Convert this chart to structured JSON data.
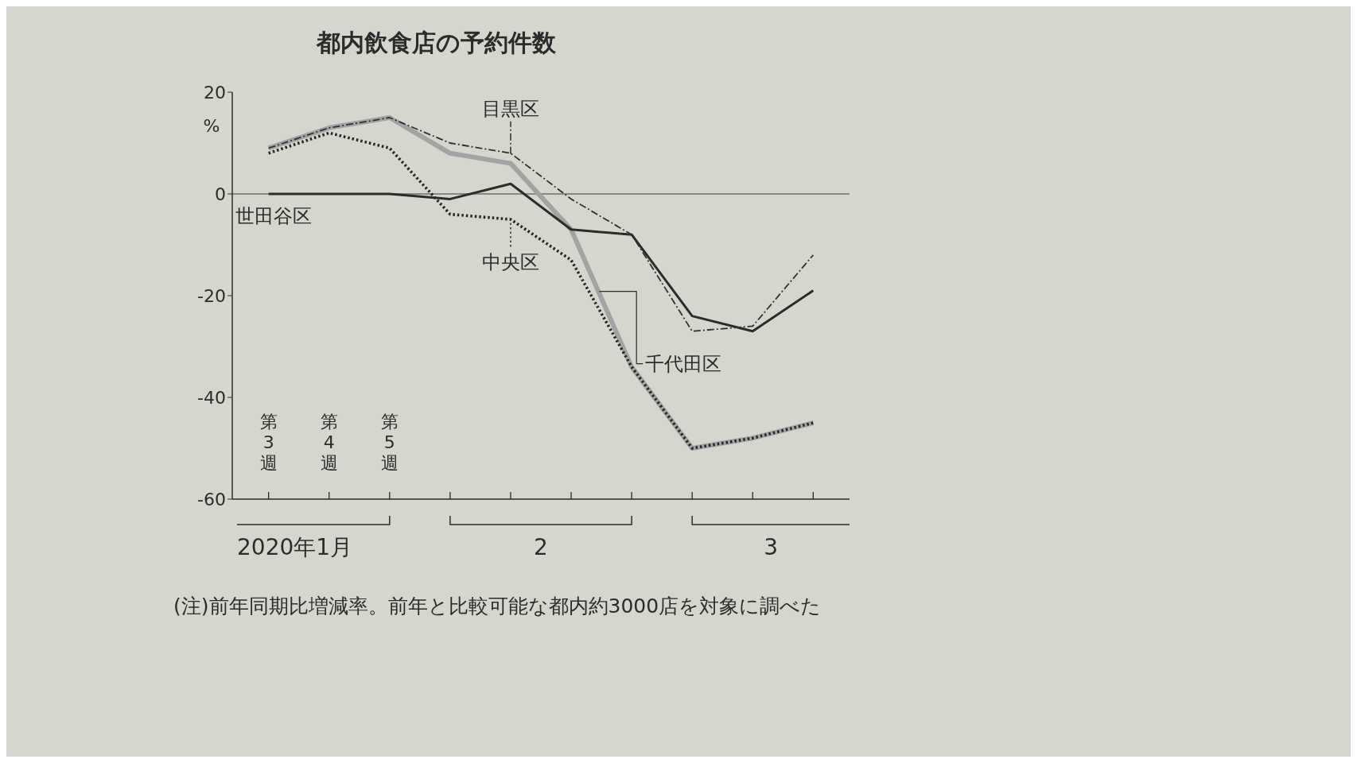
{
  "chart_data": {
    "type": "line",
    "title": "都内飲食店の予約件数",
    "ylabel": "%",
    "categories": [
      "第3週",
      "第4週",
      "第5週",
      null,
      null,
      null,
      null,
      null,
      null,
      null
    ],
    "series": [
      {
        "name": "千代田区",
        "color": "#a3a3a3",
        "line_style": "solid",
        "values": [
          9,
          13,
          15,
          8,
          6,
          -7,
          -34,
          -50,
          -48,
          -45
        ]
      },
      {
        "name": "中央区",
        "color": "#262626",
        "line_style": "dotted",
        "values": [
          8,
          12,
          9,
          -4,
          -5,
          -13,
          -34,
          -50,
          -48,
          -45
        ]
      },
      {
        "name": "世田谷区",
        "color": "#2b2b2b",
        "line_style": "solid",
        "values": [
          0,
          0,
          0,
          -1,
          2,
          -7,
          -8,
          -24,
          -27,
          -19
        ]
      },
      {
        "name": "目黒区",
        "color": "#303030",
        "line_style": "dashed",
        "values": [
          9,
          13,
          15,
          10,
          8,
          -1,
          -8,
          -27,
          -26,
          -12
        ]
      }
    ],
    "ylim": [
      -60,
      20
    ],
    "yticks": [
      -60,
      -40,
      -20,
      0,
      20
    ],
    "ref_lines": [
      {
        "axis": "y",
        "value": 0,
        "color": "#3a3a3a"
      }
    ],
    "marker": "none",
    "annotations": [
      "2020年1月",
      "2",
      "3",
      "(注)前年同期比増減率。前年と比較可能な都内約3000店を対象に調べた"
    ]
  }
}
